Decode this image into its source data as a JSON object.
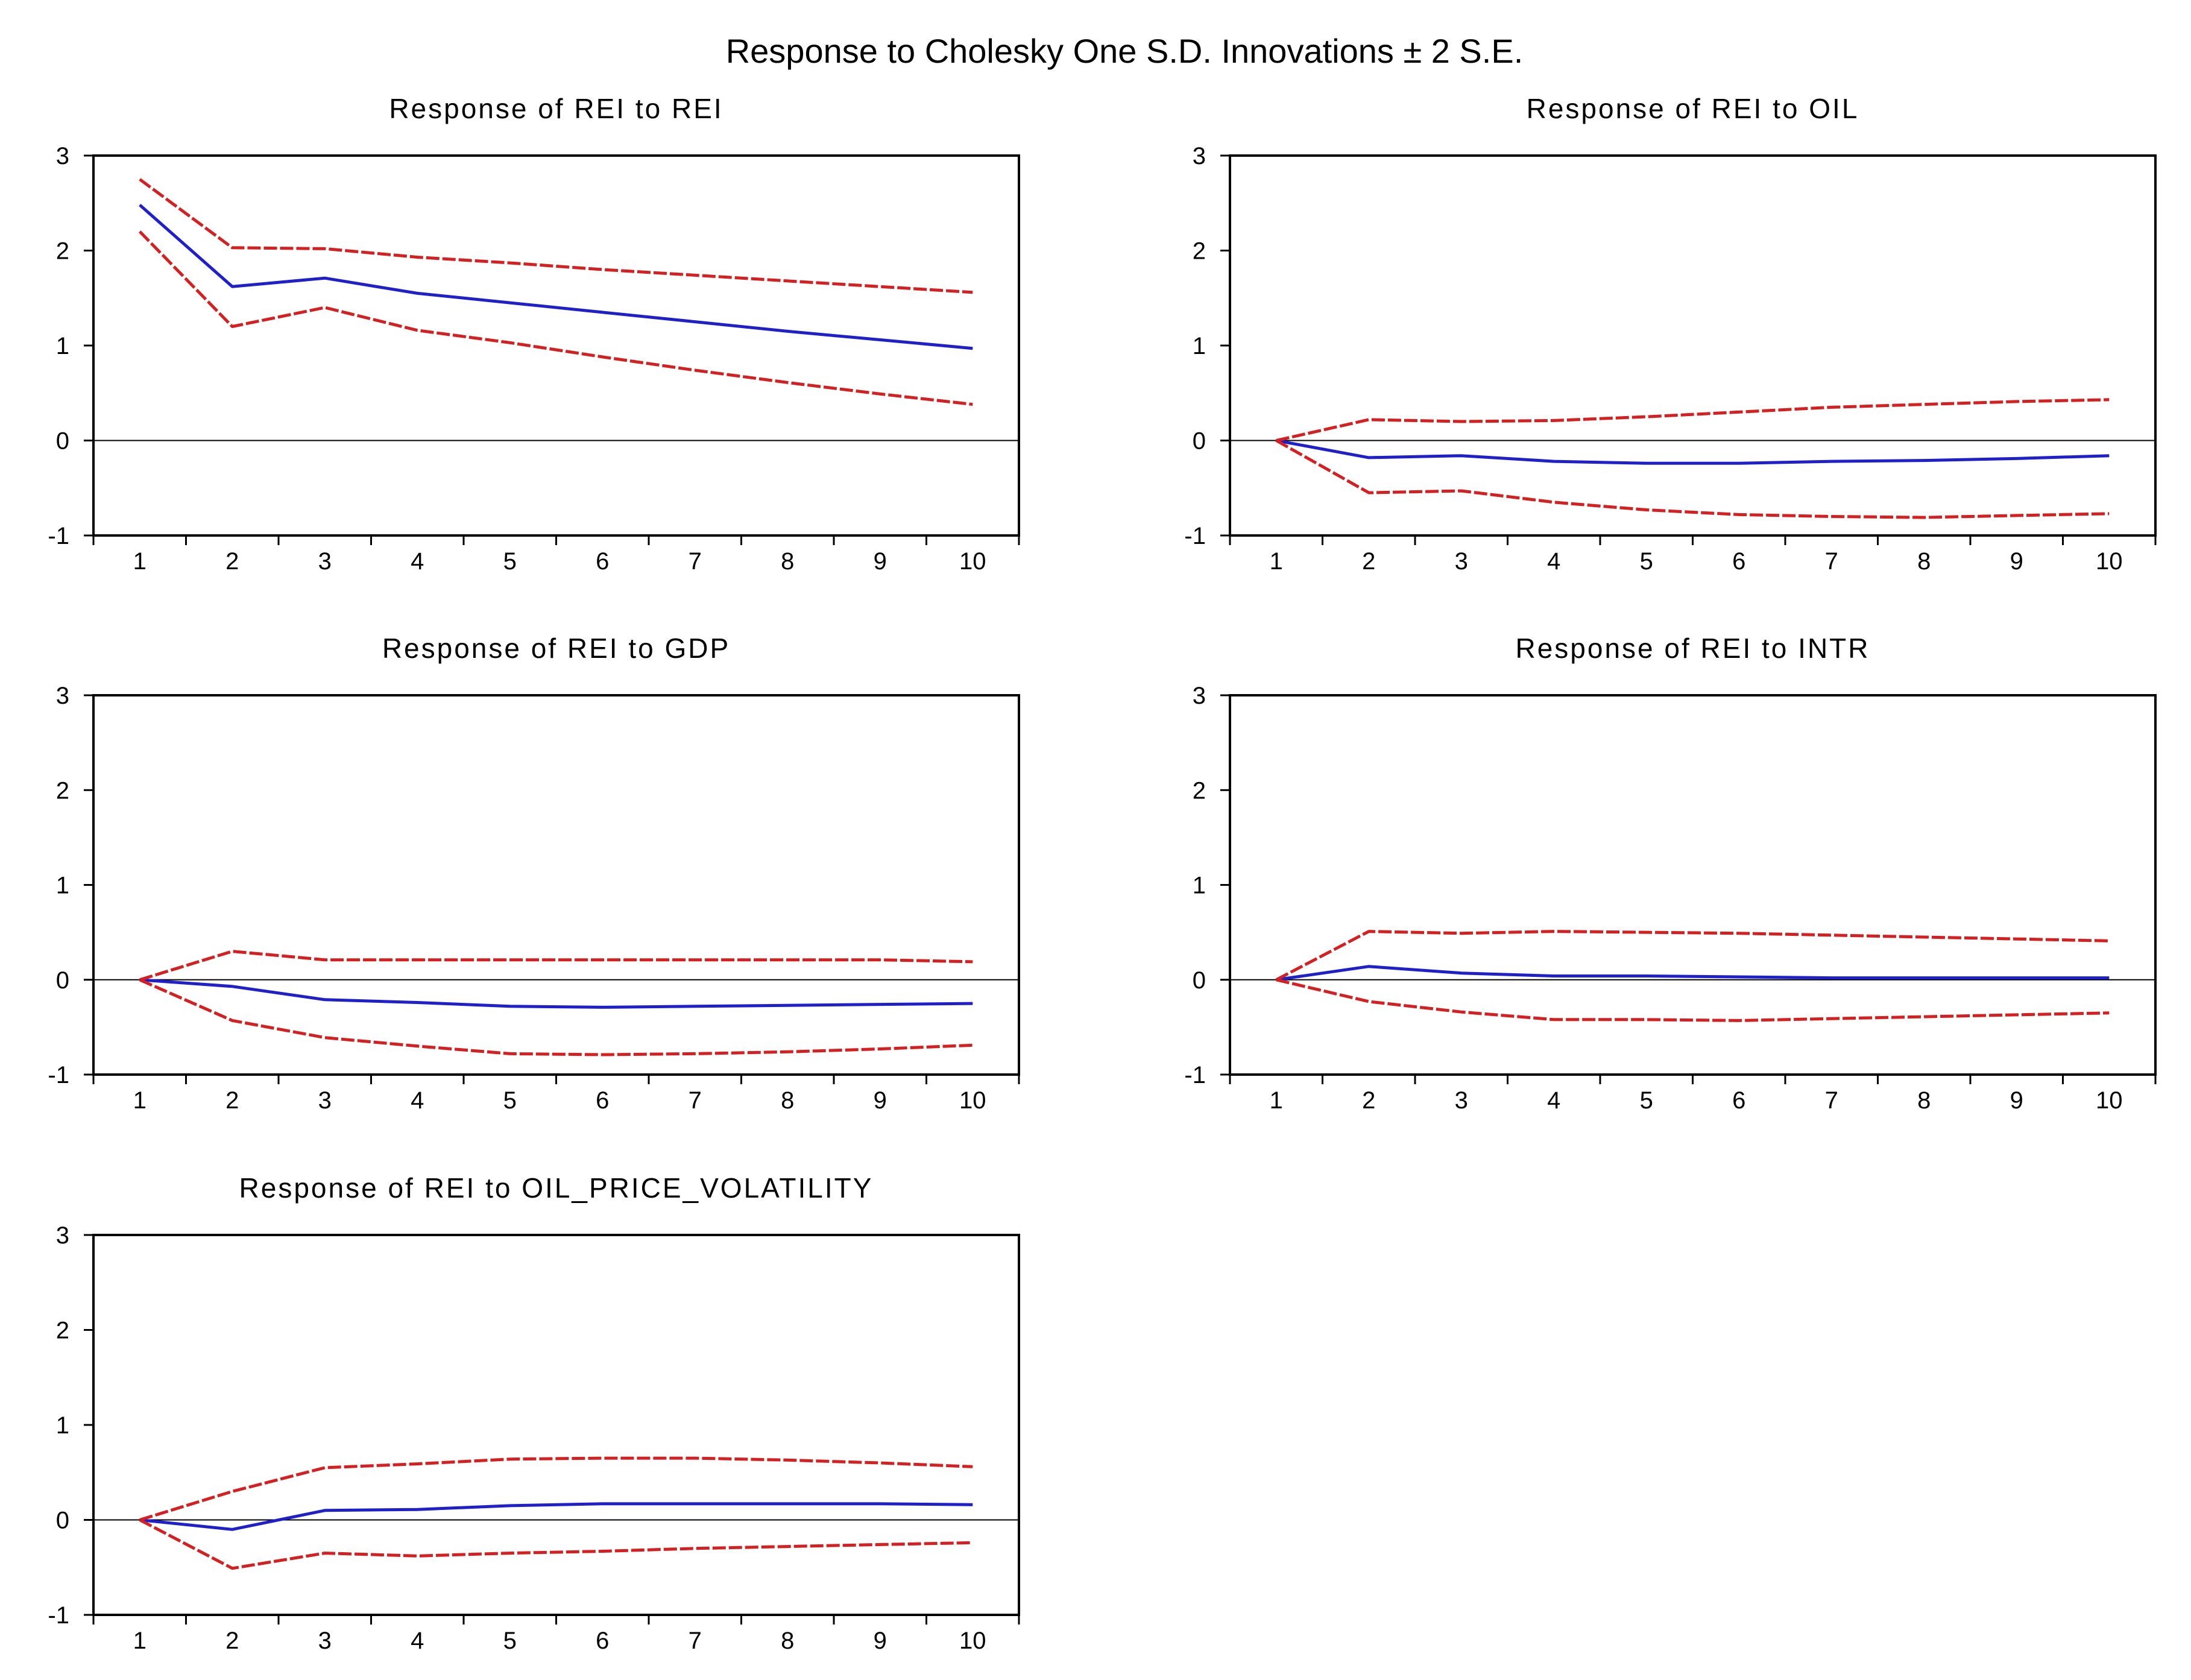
{
  "figure_title": "Response to Cholesky One S.D. Innovations ± 2 S.E.",
  "colors": {
    "response": "#1f1fcc",
    "bands": "#d42020",
    "axis": "#000000"
  },
  "chart_data": [
    {
      "type": "line",
      "title": "Response of REI to REI",
      "x": [
        1,
        2,
        3,
        4,
        5,
        6,
        7,
        8,
        9,
        10
      ],
      "x_tick_labels": [
        "1",
        "2",
        "3",
        "4",
        "5",
        "6",
        "7",
        "8",
        "9",
        "10"
      ],
      "ylim": [
        -1,
        3
      ],
      "y_ticks": [
        -1,
        0,
        1,
        2,
        3
      ],
      "y_tick_labels": [
        "-1",
        "0",
        "1",
        "2",
        "3"
      ],
      "series": [
        {
          "name": "response",
          "values": [
            2.48,
            1.62,
            1.71,
            1.55,
            1.45,
            1.35,
            1.25,
            1.15,
            1.06,
            0.97
          ]
        },
        {
          "name": "upper_2se",
          "values": [
            2.75,
            2.03,
            2.02,
            1.93,
            1.87,
            1.8,
            1.74,
            1.68,
            1.62,
            1.56
          ]
        },
        {
          "name": "lower_2se",
          "values": [
            2.2,
            1.2,
            1.4,
            1.16,
            1.03,
            0.88,
            0.74,
            0.61,
            0.49,
            0.38
          ]
        }
      ]
    },
    {
      "type": "line",
      "title": "Response of REI to OIL",
      "x": [
        1,
        2,
        3,
        4,
        5,
        6,
        7,
        8,
        9,
        10
      ],
      "x_tick_labels": [
        "1",
        "2",
        "3",
        "4",
        "5",
        "6",
        "7",
        "8",
        "9",
        "10"
      ],
      "ylim": [
        -1,
        3
      ],
      "y_ticks": [
        -1,
        0,
        1,
        2,
        3
      ],
      "y_tick_labels": [
        "-1",
        "0",
        "1",
        "2",
        "3"
      ],
      "series": [
        {
          "name": "response",
          "values": [
            0.0,
            -0.18,
            -0.16,
            -0.22,
            -0.24,
            -0.24,
            -0.22,
            -0.21,
            -0.19,
            -0.16
          ]
        },
        {
          "name": "upper_2se",
          "values": [
            0.0,
            0.22,
            0.2,
            0.21,
            0.25,
            0.3,
            0.35,
            0.38,
            0.41,
            0.43
          ]
        },
        {
          "name": "lower_2se",
          "values": [
            0.0,
            -0.55,
            -0.53,
            -0.65,
            -0.73,
            -0.78,
            -0.8,
            -0.81,
            -0.79,
            -0.77
          ]
        }
      ]
    },
    {
      "type": "line",
      "title": "Response of REI to GDP",
      "x": [
        1,
        2,
        3,
        4,
        5,
        6,
        7,
        8,
        9,
        10
      ],
      "x_tick_labels": [
        "1",
        "2",
        "3",
        "4",
        "5",
        "6",
        "7",
        "8",
        "9",
        "10"
      ],
      "ylim": [
        -1,
        3
      ],
      "y_ticks": [
        -1,
        0,
        1,
        2,
        3
      ],
      "y_tick_labels": [
        "-1",
        "0",
        "1",
        "2",
        "3"
      ],
      "series": [
        {
          "name": "response",
          "values": [
            0.0,
            -0.07,
            -0.21,
            -0.24,
            -0.28,
            -0.29,
            -0.28,
            -0.27,
            -0.26,
            -0.25
          ]
        },
        {
          "name": "upper_2se",
          "values": [
            0.0,
            0.3,
            0.21,
            0.21,
            0.21,
            0.21,
            0.21,
            0.21,
            0.21,
            0.19
          ]
        },
        {
          "name": "lower_2se",
          "values": [
            0.0,
            -0.43,
            -0.61,
            -0.7,
            -0.78,
            -0.79,
            -0.78,
            -0.76,
            -0.73,
            -0.69
          ]
        }
      ]
    },
    {
      "type": "line",
      "title": "Response of REI to INTR",
      "x": [
        1,
        2,
        3,
        4,
        5,
        6,
        7,
        8,
        9,
        10
      ],
      "x_tick_labels": [
        "1",
        "2",
        "3",
        "4",
        "5",
        "6",
        "7",
        "8",
        "9",
        "10"
      ],
      "ylim": [
        -1,
        3
      ],
      "y_ticks": [
        -1,
        0,
        1,
        2,
        3
      ],
      "y_tick_labels": [
        "-1",
        "0",
        "1",
        "2",
        "3"
      ],
      "series": [
        {
          "name": "response",
          "values": [
            0.0,
            0.14,
            0.07,
            0.04,
            0.04,
            0.03,
            0.02,
            0.02,
            0.02,
            0.02
          ]
        },
        {
          "name": "upper_2se",
          "values": [
            0.0,
            0.51,
            0.49,
            0.51,
            0.5,
            0.49,
            0.47,
            0.45,
            0.43,
            0.41
          ]
        },
        {
          "name": "lower_2se",
          "values": [
            0.0,
            -0.23,
            -0.34,
            -0.42,
            -0.42,
            -0.43,
            -0.41,
            -0.39,
            -0.37,
            -0.35
          ]
        }
      ]
    },
    {
      "type": "line",
      "title": "Response of REI to OIL_PRICE_VOLATILITY",
      "x": [
        1,
        2,
        3,
        4,
        5,
        6,
        7,
        8,
        9,
        10
      ],
      "x_tick_labels": [
        "1",
        "2",
        "3",
        "4",
        "5",
        "6",
        "7",
        "8",
        "9",
        "10"
      ],
      "ylim": [
        -1,
        3
      ],
      "y_ticks": [
        -1,
        0,
        1,
        2,
        3
      ],
      "y_tick_labels": [
        "-1",
        "0",
        "1",
        "2",
        "3"
      ],
      "series": [
        {
          "name": "response",
          "values": [
            0.0,
            -0.1,
            0.1,
            0.11,
            0.15,
            0.17,
            0.17,
            0.17,
            0.17,
            0.16
          ]
        },
        {
          "name": "upper_2se",
          "values": [
            0.0,
            0.3,
            0.55,
            0.59,
            0.64,
            0.65,
            0.65,
            0.63,
            0.6,
            0.56
          ]
        },
        {
          "name": "lower_2se",
          "values": [
            0.0,
            -0.51,
            -0.35,
            -0.38,
            -0.35,
            -0.33,
            -0.3,
            -0.28,
            -0.26,
            -0.24
          ]
        }
      ]
    }
  ]
}
